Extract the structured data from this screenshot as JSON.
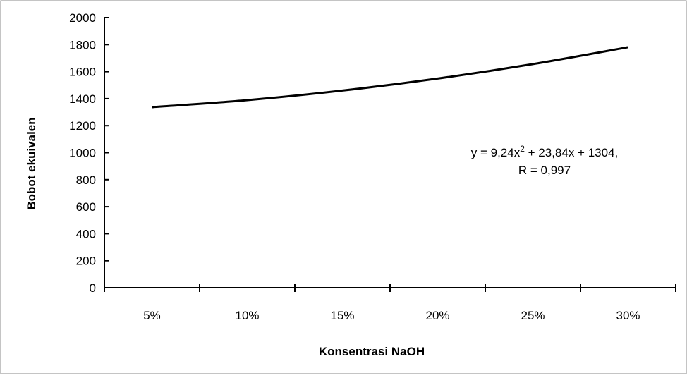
{
  "chart_data": {
    "type": "line",
    "title": "",
    "xlabel": "Konsentrasi NaOH",
    "ylabel": "Bobot ekuivalen",
    "categories": [
      "5%",
      "10%",
      "15%",
      "20%",
      "25%",
      "30%"
    ],
    "x": [
      1,
      2,
      3,
      4,
      5,
      6
    ],
    "series": [
      {
        "name": "",
        "color": "#000000",
        "values": [
          1337,
          1389,
          1460,
          1549,
          1656,
          1781
        ]
      }
    ],
    "ylim": [
      0,
      2000
    ],
    "yticks": [
      0,
      200,
      400,
      600,
      800,
      1000,
      1200,
      1400,
      1600,
      1800,
      2000
    ],
    "yticklabels": [
      "0",
      "200",
      "400",
      "600",
      "800",
      "1000",
      "1200",
      "1400",
      "1600",
      "1800",
      "2000"
    ],
    "grid": false,
    "legend": "none",
    "smooth": true,
    "annotation": {
      "line1_prefix": "y = 9,24x",
      "line1_sup": "2",
      "line1_suffix": " + 23,84x + 1304,",
      "line2": "R = 0,997"
    }
  }
}
